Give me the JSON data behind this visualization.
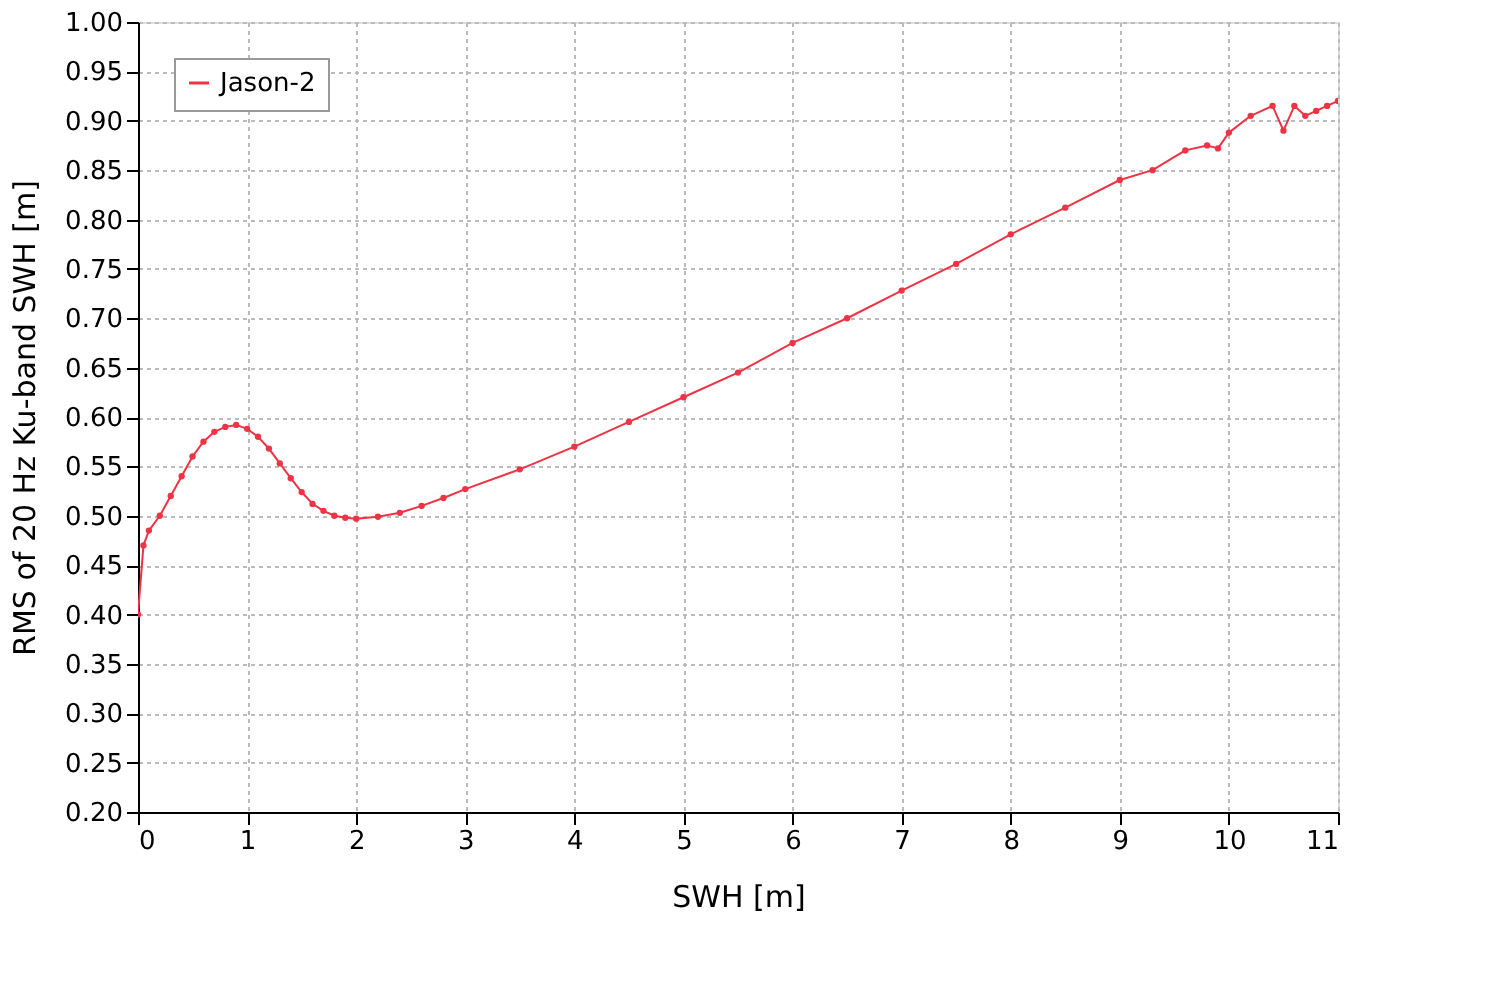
{
  "chart_data": {
    "type": "line",
    "xlabel": "SWH [m]",
    "ylabel": "RMS of 20 Hz Ku-band SWH [m]",
    "x": [
      0,
      0.05,
      0.1,
      0.2,
      0.3,
      0.4,
      0.5,
      0.6,
      0.7,
      0.8,
      0.9,
      1.0,
      1.1,
      1.2,
      1.3,
      1.4,
      1.5,
      1.6,
      1.7,
      1.8,
      1.9,
      2.0,
      2.2,
      2.4,
      2.6,
      2.8,
      3.0,
      3.5,
      4.0,
      4.5,
      5.0,
      5.5,
      6.0,
      6.5,
      7.0,
      7.5,
      8.0,
      8.5,
      9.0,
      9.3,
      9.6,
      9.8,
      9.9,
      10.0,
      10.2,
      10.4,
      10.5,
      10.6,
      10.7,
      10.8,
      10.9,
      11.0
    ],
    "series": [
      {
        "name": "Jason-2",
        "color": "#ee3344",
        "values": [
          0.4,
          0.47,
          0.485,
          0.5,
          0.52,
          0.54,
          0.56,
          0.575,
          0.585,
          0.59,
          0.592,
          0.588,
          0.58,
          0.568,
          0.553,
          0.538,
          0.524,
          0.512,
          0.505,
          0.5,
          0.498,
          0.497,
          0.499,
          0.503,
          0.51,
          0.518,
          0.527,
          0.547,
          0.57,
          0.595,
          0.62,
          0.645,
          0.675,
          0.7,
          0.728,
          0.755,
          0.785,
          0.812,
          0.84,
          0.85,
          0.87,
          0.875,
          0.872,
          0.888,
          0.905,
          0.915,
          0.89,
          0.915,
          0.905,
          0.91,
          0.915,
          0.92
        ]
      }
    ],
    "xlim": [
      0,
      11
    ],
    "xticks": [
      0,
      1,
      2,
      3,
      4,
      5,
      6,
      7,
      8,
      9,
      10,
      11
    ],
    "ylim": [
      0.2,
      1.0
    ],
    "yticks": [
      {
        "value": 0.2,
        "label": "0.20"
      },
      {
        "value": 0.25,
        "label": "0.25"
      },
      {
        "value": 0.3,
        "label": "0.30"
      },
      {
        "value": 0.35,
        "label": "0.35"
      },
      {
        "value": 0.4,
        "label": "0.40"
      },
      {
        "value": 0.45,
        "label": "0.45"
      },
      {
        "value": 0.5,
        "label": "0.50"
      },
      {
        "value": 0.55,
        "label": "0.55"
      },
      {
        "value": 0.6,
        "label": "0.60"
      },
      {
        "value": 0.65,
        "label": "0.65"
      },
      {
        "value": 0.7,
        "label": "0.70"
      },
      {
        "value": 0.75,
        "label": "0.75"
      },
      {
        "value": 0.8,
        "label": "0.80"
      },
      {
        "value": 0.85,
        "label": "0.85"
      },
      {
        "value": 0.9,
        "label": "0.90"
      },
      {
        "value": 0.95,
        "label": "0.95"
      },
      {
        "value": 1.0,
        "label": "1.00"
      }
    ],
    "grid": true,
    "legend": "top left",
    "marker": "circle",
    "line_style": "solid"
  }
}
